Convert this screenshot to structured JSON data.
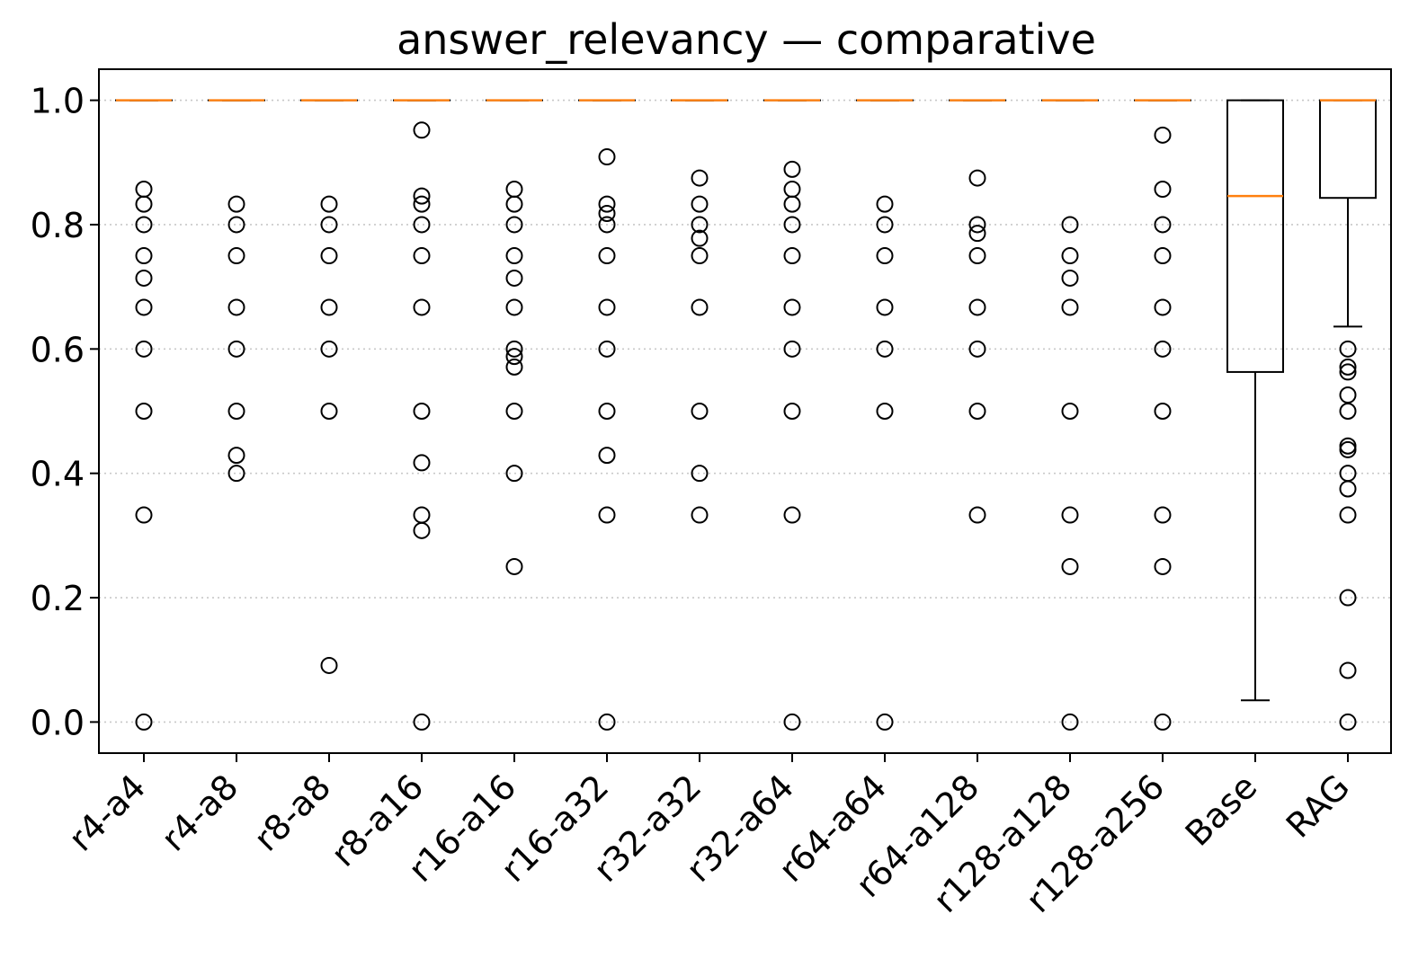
{
  "chart_data": {
    "type": "box",
    "title": "answer_relevancy — comparative",
    "xlabel": "",
    "ylabel": "",
    "ylim": [
      -0.05,
      1.05
    ],
    "yticks": [
      0.0,
      0.2,
      0.4,
      0.6,
      0.8,
      1.0
    ],
    "ytick_labels": [
      "0.0",
      "0.2",
      "0.4",
      "0.6",
      "0.8",
      "1.0"
    ],
    "grid": "y-dotted",
    "colors": {
      "median": "#ff7f0e",
      "box": "#000000",
      "grid": "#c8c8c8"
    },
    "categories": [
      "r4-a4",
      "r4-a8",
      "r8-a8",
      "r8-a16",
      "r16-a16",
      "r16-a32",
      "r32-a32",
      "r32-a64",
      "r64-a64",
      "r64-a128",
      "r128-a128",
      "r128-a256",
      "Base",
      "RAG"
    ],
    "boxes": [
      {
        "name": "r4-a4",
        "q1": 1.0,
        "median": 1.0,
        "q3": 1.0,
        "whislo": 1.0,
        "whishi": 1.0,
        "fliers": [
          0.857,
          0.833,
          0.8,
          0.75,
          0.714,
          0.667,
          0.6,
          0.5,
          0.333,
          0.0
        ]
      },
      {
        "name": "r4-a8",
        "q1": 1.0,
        "median": 1.0,
        "q3": 1.0,
        "whislo": 1.0,
        "whishi": 1.0,
        "fliers": [
          0.833,
          0.8,
          0.75,
          0.667,
          0.6,
          0.5,
          0.429,
          0.4
        ]
      },
      {
        "name": "r8-a8",
        "q1": 1.0,
        "median": 1.0,
        "q3": 1.0,
        "whislo": 1.0,
        "whishi": 1.0,
        "fliers": [
          0.833,
          0.8,
          0.75,
          0.667,
          0.6,
          0.5,
          0.091
        ]
      },
      {
        "name": "r8-a16",
        "q1": 1.0,
        "median": 1.0,
        "q3": 1.0,
        "whislo": 1.0,
        "whishi": 1.0,
        "fliers": [
          0.952,
          0.846,
          0.833,
          0.8,
          0.75,
          0.667,
          0.5,
          0.417,
          0.333,
          0.308,
          0.0
        ]
      },
      {
        "name": "r16-a16",
        "q1": 1.0,
        "median": 1.0,
        "q3": 1.0,
        "whislo": 1.0,
        "whishi": 1.0,
        "fliers": [
          0.857,
          0.833,
          0.8,
          0.75,
          0.714,
          0.667,
          0.6,
          0.588,
          0.571,
          0.5,
          0.4,
          0.25
        ]
      },
      {
        "name": "r16-a32",
        "q1": 1.0,
        "median": 1.0,
        "q3": 1.0,
        "whislo": 1.0,
        "whishi": 1.0,
        "fliers": [
          0.909,
          0.833,
          0.818,
          0.8,
          0.75,
          0.667,
          0.6,
          0.5,
          0.429,
          0.333,
          0.0
        ]
      },
      {
        "name": "r32-a32",
        "q1": 1.0,
        "median": 1.0,
        "q3": 1.0,
        "whislo": 1.0,
        "whishi": 1.0,
        "fliers": [
          0.875,
          0.833,
          0.8,
          0.778,
          0.75,
          0.667,
          0.5,
          0.4,
          0.333
        ]
      },
      {
        "name": "r32-a64",
        "q1": 1.0,
        "median": 1.0,
        "q3": 1.0,
        "whislo": 1.0,
        "whishi": 1.0,
        "fliers": [
          0.889,
          0.857,
          0.833,
          0.8,
          0.75,
          0.667,
          0.6,
          0.5,
          0.333,
          0.0
        ]
      },
      {
        "name": "r64-a64",
        "q1": 1.0,
        "median": 1.0,
        "q3": 1.0,
        "whislo": 1.0,
        "whishi": 1.0,
        "fliers": [
          0.833,
          0.8,
          0.75,
          0.667,
          0.6,
          0.5,
          0.0
        ]
      },
      {
        "name": "r64-a128",
        "q1": 1.0,
        "median": 1.0,
        "q3": 1.0,
        "whislo": 1.0,
        "whishi": 1.0,
        "fliers": [
          0.875,
          0.8,
          0.786,
          0.75,
          0.667,
          0.6,
          0.5,
          0.333
        ]
      },
      {
        "name": "r128-a128",
        "q1": 1.0,
        "median": 1.0,
        "q3": 1.0,
        "whislo": 1.0,
        "whishi": 1.0,
        "fliers": [
          0.8,
          0.75,
          0.714,
          0.667,
          0.5,
          0.333,
          0.25,
          0.0
        ]
      },
      {
        "name": "r128-a256",
        "q1": 1.0,
        "median": 1.0,
        "q3": 1.0,
        "whislo": 1.0,
        "whishi": 1.0,
        "fliers": [
          0.944,
          0.857,
          0.8,
          0.75,
          0.667,
          0.6,
          0.5,
          0.333,
          0.25,
          0.0
        ]
      },
      {
        "name": "Base",
        "q1": 0.563,
        "median": 0.846,
        "q3": 1.0,
        "whislo": 0.035,
        "whishi": 1.0,
        "fliers": []
      },
      {
        "name": "RAG",
        "q1": 0.843,
        "median": 1.0,
        "q3": 1.0,
        "whislo": 0.636,
        "whishi": 1.0,
        "fliers": [
          0.6,
          0.571,
          0.563,
          0.526,
          0.5,
          0.444,
          0.438,
          0.4,
          0.375,
          0.333,
          0.2,
          0.083,
          0.0
        ]
      }
    ]
  }
}
